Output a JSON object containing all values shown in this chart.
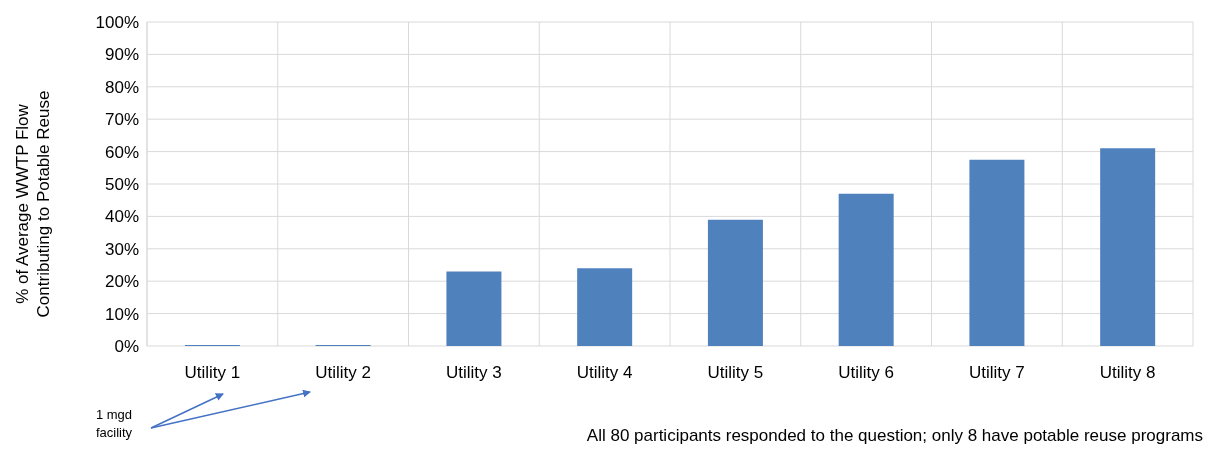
{
  "chart_data": {
    "type": "bar",
    "ylabel": "% of Average WWTP Flow\nContributing to Potable Reuse",
    "categories": [
      "Utility 1",
      "Utility 2",
      "Utility 3",
      "Utility 4",
      "Utility 5",
      "Utility 6",
      "Utility 7",
      "Utility 8"
    ],
    "values": [
      0.3,
      0.3,
      23,
      24,
      39,
      47,
      57.5,
      61
    ],
    "color": "#4f81bd",
    "ylim": [
      0,
      100
    ],
    "yticks": [
      {
        "value": 0,
        "label": "0%"
      },
      {
        "value": 10,
        "label": "10%"
      },
      {
        "value": 20,
        "label": "20%"
      },
      {
        "value": 30,
        "label": "30%"
      },
      {
        "value": 40,
        "label": "40%"
      },
      {
        "value": 50,
        "label": "50%"
      },
      {
        "value": 60,
        "label": "60%"
      },
      {
        "value": 70,
        "label": "70%"
      },
      {
        "value": 80,
        "label": "80%"
      },
      {
        "value": 90,
        "label": "90%"
      },
      {
        "value": 100,
        "label": "100%"
      }
    ],
    "grid": true,
    "annotations": [
      "1 mgd facility",
      "All 80 participants responded to the question; only 8 have potable reuse programs"
    ]
  }
}
